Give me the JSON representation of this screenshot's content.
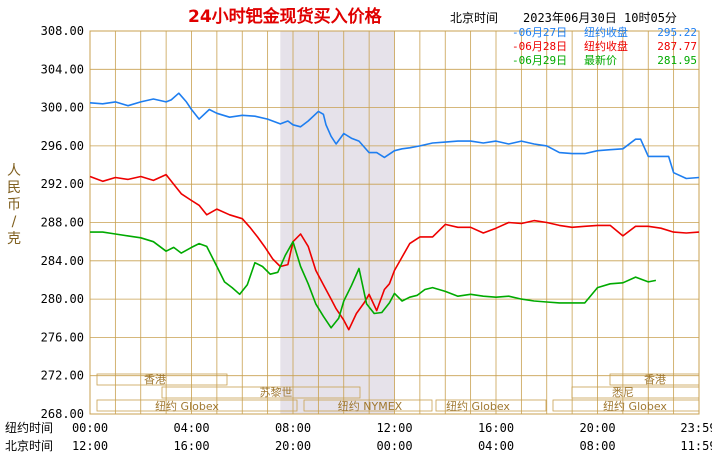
{
  "header": {
    "title": "24小时钯金现货买入价格",
    "timezone_label": "北京时间",
    "timestamp": "2023年06月30日 10时05分",
    "title_color": "#e00000"
  },
  "y_axis_label": "人民币/克",
  "row_labels": {
    "ny_time": "纽约时间",
    "beijing_time": "北京时间"
  },
  "legend": [
    {
      "date": "06月27日",
      "label": "纽约收盘",
      "value": "295.22",
      "color": "#1e7ef0"
    },
    {
      "date": "06月28日",
      "label": "纽约收盘",
      "value": "287.77",
      "color": "#ee0000"
    },
    {
      "date": "06月29日",
      "label": "最新价",
      "value": "281.95",
      "color": "#00aa00"
    }
  ],
  "markets": {
    "hongkong": "香港",
    "paris": "苏黎世",
    "ny_globex": "纽约 Globex",
    "ny_nymex": "纽约 NYMEX",
    "sydney": "悉尼"
  },
  "colors": {
    "grid": "#c8a050",
    "axis_text": "#000000",
    "session_shade": "#e6e2ea",
    "background": "#ffffff"
  },
  "chart_data": {
    "type": "line",
    "ylim": [
      268,
      308
    ],
    "yticks": [
      "268.00",
      "272.00",
      "276.00",
      "280.00",
      "284.00",
      "288.00",
      "292.00",
      "296.00",
      "300.00",
      "304.00",
      "308.00"
    ],
    "xlim_hours": [
      0,
      24
    ],
    "ny_time_ticks": [
      "00:00",
      "04:00",
      "08:00",
      "12:00",
      "16:00",
      "20:00",
      "23:59"
    ],
    "beijing_time_ticks": [
      "12:00",
      "16:00",
      "20:00",
      "00:00",
      "04:00",
      "08:00",
      "11:59"
    ],
    "tick_hours": [
      0,
      4,
      8,
      12,
      16,
      20,
      23.98
    ],
    "shaded_session_hours": [
      7.5,
      12.0
    ],
    "series": [
      {
        "name": "06月27日",
        "color": "#1e7ef0",
        "x": [
          0,
          0.5,
          1,
          1.5,
          2,
          2.5,
          3,
          3.2,
          3.5,
          3.8,
          4,
          4.3,
          4.7,
          5,
          5.5,
          6,
          6.5,
          7,
          7.5,
          7.8,
          8,
          8.3,
          8.6,
          9,
          9.2,
          9.3,
          9.5,
          9.7,
          10,
          10.3,
          10.6,
          11,
          11.3,
          11.6,
          12,
          12.3,
          12.6,
          13,
          13.5,
          14,
          14.5,
          15,
          15.5,
          16,
          16.5,
          17,
          17.5,
          18,
          18.5,
          19,
          19.5,
          20,
          20.5,
          21,
          21.5,
          21.7,
          22,
          22.5,
          22.8,
          23,
          23.5,
          24
        ],
        "y": [
          300.5,
          300.4,
          300.6,
          300.2,
          300.6,
          300.9,
          300.6,
          300.8,
          301.5,
          300.6,
          299.8,
          298.8,
          299.8,
          299.4,
          299.0,
          299.2,
          299.1,
          298.8,
          298.3,
          298.6,
          298.2,
          298.0,
          298.6,
          299.6,
          299.3,
          298.2,
          297.0,
          296.2,
          297.3,
          296.8,
          296.5,
          295.3,
          295.3,
          294.8,
          295.5,
          295.7,
          295.8,
          296.0,
          296.3,
          296.4,
          296.5,
          296.5,
          296.3,
          296.5,
          296.2,
          296.5,
          296.2,
          296.0,
          295.3,
          295.2,
          295.2,
          295.5,
          295.6,
          295.7,
          296.7,
          296.7,
          294.9,
          294.9,
          294.9,
          293.2,
          292.6,
          292.7
        ]
      },
      {
        "name": "06月28日",
        "color": "#ee0000",
        "x": [
          0,
          0.5,
          1,
          1.5,
          2,
          2.5,
          3,
          3.3,
          3.6,
          4,
          4.3,
          4.6,
          5,
          5.5,
          6,
          6.3,
          6.6,
          6.9,
          7.2,
          7.5,
          7.8,
          8,
          8.3,
          8.6,
          8.9,
          9.2,
          9.5,
          9.7,
          10,
          10.2,
          10.5,
          10.8,
          11,
          11.3,
          11.6,
          11.8,
          12,
          12.3,
          12.6,
          13,
          13.5,
          14,
          14.5,
          15,
          15.5,
          16,
          16.5,
          17,
          17.5,
          18,
          18.5,
          19,
          19.5,
          20,
          20.5,
          21,
          21.5,
          22,
          22.5,
          23,
          23.5,
          24
        ],
        "y": [
          292.8,
          292.3,
          292.7,
          292.5,
          292.8,
          292.4,
          293.0,
          292.0,
          291.0,
          290.3,
          289.8,
          288.8,
          289.4,
          288.8,
          288.4,
          287.5,
          286.5,
          285.4,
          284.2,
          283.4,
          283.6,
          286.0,
          286.8,
          285.5,
          283.0,
          281.5,
          280.0,
          279.0,
          277.8,
          276.8,
          278.5,
          279.6,
          280.5,
          278.8,
          281.0,
          281.6,
          283.0,
          284.4,
          285.8,
          286.5,
          286.5,
          287.8,
          287.5,
          287.5,
          286.9,
          287.4,
          288.0,
          287.9,
          288.2,
          288.0,
          287.7,
          287.5,
          287.6,
          287.7,
          287.7,
          286.6,
          287.6,
          287.6,
          287.4,
          287.0,
          286.9,
          287.0
        ]
      },
      {
        "name": "06月29日",
        "color": "#00aa00",
        "x": [
          0,
          0.5,
          1,
          1.5,
          2,
          2.5,
          3,
          3.3,
          3.6,
          4,
          4.3,
          4.6,
          5,
          5.3,
          5.6,
          5.9,
          6.2,
          6.5,
          6.8,
          7.1,
          7.4,
          7.7,
          8,
          8.3,
          8.6,
          8.9,
          9.2,
          9.5,
          9.8,
          10,
          10.3,
          10.6,
          10.9,
          11.2,
          11.5,
          11.8,
          12,
          12.3,
          12.6,
          12.9,
          13.2,
          13.5,
          14,
          14.5,
          15,
          15.5,
          16,
          16.5,
          17,
          17.5,
          18,
          18.5,
          19,
          19.5,
          20,
          20.5,
          21,
          21.5,
          22,
          22.3
        ],
        "y": [
          287.0,
          287.0,
          286.8,
          286.6,
          286.4,
          286.0,
          285.0,
          285.4,
          284.8,
          285.4,
          285.8,
          285.5,
          283.4,
          281.8,
          281.2,
          280.5,
          281.5,
          283.8,
          283.4,
          282.6,
          282.8,
          284.6,
          286.0,
          283.4,
          281.6,
          279.5,
          278.2,
          277.0,
          278.0,
          279.8,
          281.4,
          283.2,
          279.5,
          278.5,
          278.6,
          279.6,
          280.6,
          279.8,
          280.2,
          280.4,
          281.0,
          281.2,
          280.8,
          280.3,
          280.5,
          280.3,
          280.2,
          280.3,
          280.0,
          279.8,
          279.7,
          279.6,
          279.6,
          279.6,
          281.2,
          281.6,
          281.7,
          282.3,
          281.8,
          281.95
        ]
      }
    ]
  }
}
